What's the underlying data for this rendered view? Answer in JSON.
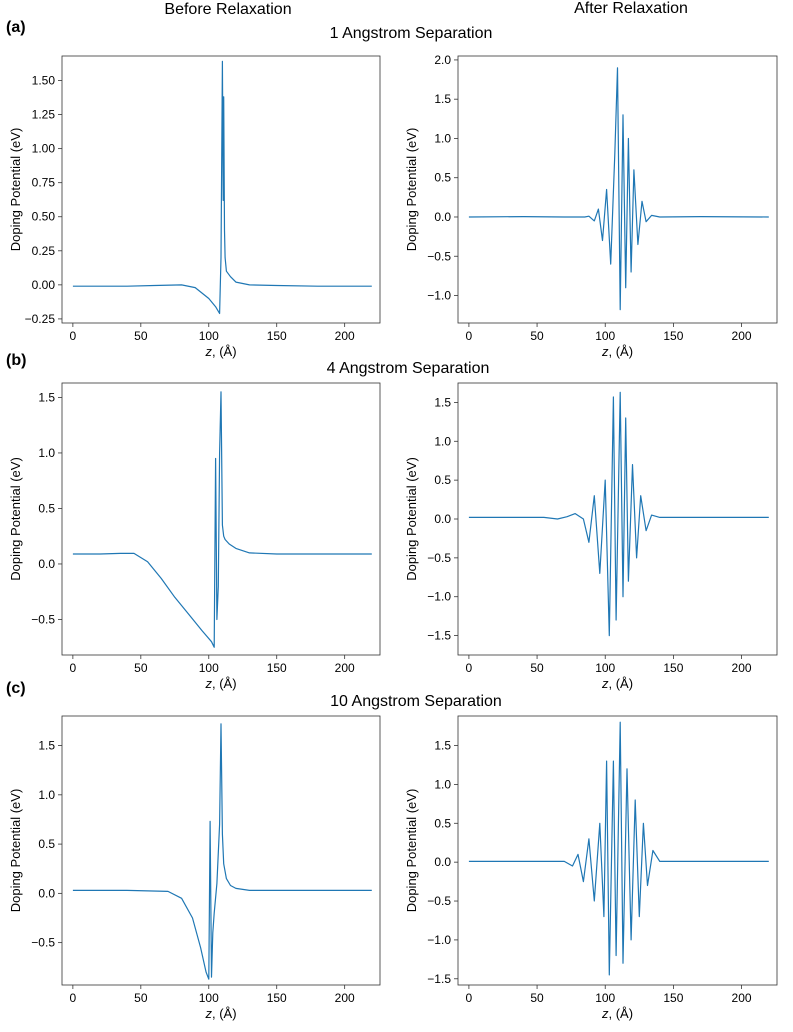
{
  "figure": {
    "column_titles": [
      "Before Relaxation",
      "After Relaxation"
    ],
    "panel_labels": [
      "(a)",
      "(b)",
      "(c)"
    ],
    "row_titles": [
      "1 Angstrom Separation",
      "4 Angstrom Separation",
      "10 Angstrom Separation"
    ],
    "line_color": "#1f77b4"
  },
  "chart_data": [
    {
      "type": "line",
      "row": 0,
      "col": 0,
      "title": "",
      "xlabel": "z, (Å)",
      "ylabel": "Doping Potential (eV)",
      "xlim": [
        -8,
        226
      ],
      "ylim": [
        -0.28,
        1.68
      ],
      "xticks": [
        0,
        50,
        100,
        150,
        200
      ],
      "yticks": [
        -0.25,
        0.0,
        0.25,
        0.5,
        0.75,
        1.0,
        1.25,
        1.5
      ],
      "ytick_labels": [
        "−0.25",
        "0.00",
        "0.25",
        "0.50",
        "0.75",
        "1.00",
        "1.25",
        "1.50"
      ],
      "x": [
        0,
        20,
        40,
        60,
        80,
        90,
        100,
        105,
        108,
        109,
        110,
        110.6,
        111,
        111.6,
        112,
        113,
        116,
        120,
        130,
        150,
        180,
        220
      ],
      "y": [
        -0.01,
        -0.01,
        -0.01,
        -0.005,
        0.0,
        -0.02,
        -0.1,
        -0.16,
        -0.21,
        0.2,
        1.64,
        0.62,
        1.38,
        0.4,
        0.2,
        0.1,
        0.06,
        0.02,
        0.0,
        -0.005,
        -0.01,
        -0.01
      ]
    },
    {
      "type": "line",
      "row": 0,
      "col": 1,
      "title": "",
      "xlabel": "z, (Å)",
      "ylabel": "Doping Potential (eV)",
      "xlim": [
        -8,
        226
      ],
      "ylim": [
        -1.35,
        2.05
      ],
      "xticks": [
        0,
        50,
        100,
        150,
        200
      ],
      "yticks": [
        -1.0,
        -0.5,
        0.0,
        0.5,
        1.0,
        1.5,
        2.0
      ],
      "ytick_labels": [
        "−1.0",
        "−0.5",
        "0.0",
        "0.5",
        "1.0",
        "1.5",
        "2.0"
      ],
      "x": [
        0,
        40,
        70,
        85,
        88,
        92,
        95,
        98,
        101,
        104,
        107,
        109,
        111,
        113,
        115,
        117,
        119,
        121,
        124,
        127,
        130,
        134,
        140,
        170,
        220
      ],
      "y": [
        0.0,
        0.005,
        0.0,
        0.0,
        0.01,
        -0.05,
        0.1,
        -0.3,
        0.35,
        -0.6,
        0.8,
        1.9,
        -1.18,
        1.3,
        -0.9,
        1.0,
        -0.7,
        0.6,
        -0.35,
        0.2,
        -0.06,
        0.02,
        0.0,
        0.005,
        0.0
      ]
    },
    {
      "type": "line",
      "row": 1,
      "col": 0,
      "title": "",
      "xlabel": "z, (Å)",
      "ylabel": "Doping Potential (eV)",
      "xlim": [
        -8,
        226
      ],
      "ylim": [
        -0.82,
        1.63
      ],
      "xticks": [
        0,
        50,
        100,
        150,
        200
      ],
      "yticks": [
        -0.5,
        0.0,
        0.5,
        1.0,
        1.5
      ],
      "ytick_labels": [
        "−0.5",
        "0.0",
        "0.5",
        "1.0",
        "1.5"
      ],
      "x": [
        0,
        20,
        35,
        45,
        55,
        65,
        75,
        85,
        95,
        102,
        104,
        105,
        106,
        107,
        108,
        109,
        110,
        111,
        112,
        115,
        120,
        130,
        150,
        220
      ],
      "y": [
        0.09,
        0.09,
        0.095,
        0.095,
        0.02,
        -0.13,
        -0.3,
        -0.45,
        -0.6,
        -0.7,
        -0.75,
        0.95,
        -0.5,
        -0.2,
        1.0,
        1.55,
        0.35,
        0.25,
        0.22,
        0.18,
        0.14,
        0.1,
        0.09,
        0.09
      ]
    },
    {
      "type": "line",
      "row": 1,
      "col": 1,
      "title": "",
      "xlabel": "z, (Å)",
      "ylabel": "Doping Potential (eV)",
      "xlim": [
        -8,
        226
      ],
      "ylim": [
        -1.75,
        1.75
      ],
      "xticks": [
        0,
        50,
        100,
        150,
        200
      ],
      "yticks": [
        -1.5,
        -1.0,
        -0.5,
        0.0,
        0.5,
        1.0,
        1.5
      ],
      "ytick_labels": [
        "−1.5",
        "−1.0",
        "−0.5",
        "0.0",
        "0.5",
        "1.0",
        "1.5"
      ],
      "x": [
        0,
        40,
        55,
        65,
        72,
        78,
        84,
        88,
        92,
        96,
        100,
        103,
        106,
        108,
        111,
        113,
        115,
        117,
        120,
        123,
        126,
        130,
        134,
        140,
        170,
        220
      ],
      "y": [
        0.02,
        0.02,
        0.02,
        0.0,
        0.03,
        0.07,
        0.0,
        -0.3,
        0.3,
        -0.7,
        0.5,
        -1.5,
        1.57,
        -1.3,
        1.63,
        -1.0,
        1.3,
        -0.8,
        0.7,
        -0.5,
        0.3,
        -0.15,
        0.05,
        0.02,
        0.02,
        0.02
      ]
    },
    {
      "type": "line",
      "row": 2,
      "col": 0,
      "title": "",
      "xlabel": "z, (Å)",
      "ylabel": "Doping Potential (eV)",
      "xlim": [
        -8,
        226
      ],
      "ylim": [
        -0.93,
        1.8
      ],
      "xticks": [
        0,
        50,
        100,
        150,
        200
      ],
      "yticks": [
        -0.5,
        0.0,
        0.5,
        1.0,
        1.5
      ],
      "ytick_labels": [
        "−0.5",
        "0.0",
        "0.5",
        "1.0",
        "1.5"
      ],
      "x": [
        0,
        40,
        70,
        80,
        88,
        94,
        98,
        100,
        101,
        102,
        103,
        104,
        106,
        108,
        109,
        110,
        111,
        113,
        116,
        120,
        130,
        150,
        220
      ],
      "y": [
        0.03,
        0.03,
        0.02,
        -0.05,
        -0.25,
        -0.55,
        -0.8,
        -0.87,
        0.73,
        -0.85,
        -0.4,
        -0.2,
        0.1,
        0.7,
        1.72,
        0.6,
        0.3,
        0.15,
        0.08,
        0.05,
        0.03,
        0.03,
        0.03
      ]
    },
    {
      "type": "line",
      "row": 2,
      "col": 1,
      "title": "",
      "xlabel": "z, (Å)",
      "ylabel": "Doping Potential (eV)",
      "xlim": [
        -8,
        226
      ],
      "ylim": [
        -1.58,
        1.88
      ],
      "xticks": [
        0,
        50,
        100,
        150,
        200
      ],
      "yticks": [
        -1.5,
        -1.0,
        -0.5,
        0.0,
        0.5,
        1.0,
        1.5
      ],
      "ytick_labels": [
        "−1.5",
        "−1.0",
        "−0.5",
        "0.0",
        "0.5",
        "1.0",
        "1.5"
      ],
      "x": [
        0,
        50,
        70,
        76,
        80,
        84,
        88,
        92,
        96,
        99,
        101,
        103,
        106,
        108,
        111,
        113,
        116,
        119,
        122,
        125,
        128,
        131,
        135,
        140,
        170,
        220
      ],
      "y": [
        0.01,
        0.01,
        0.01,
        -0.05,
        0.1,
        -0.25,
        0.3,
        -0.5,
        0.5,
        -0.7,
        1.3,
        -1.45,
        1.3,
        -1.2,
        1.8,
        -1.3,
        1.2,
        -1.0,
        0.8,
        -0.7,
        0.5,
        -0.3,
        0.15,
        0.01,
        0.01,
        0.01
      ]
    }
  ]
}
